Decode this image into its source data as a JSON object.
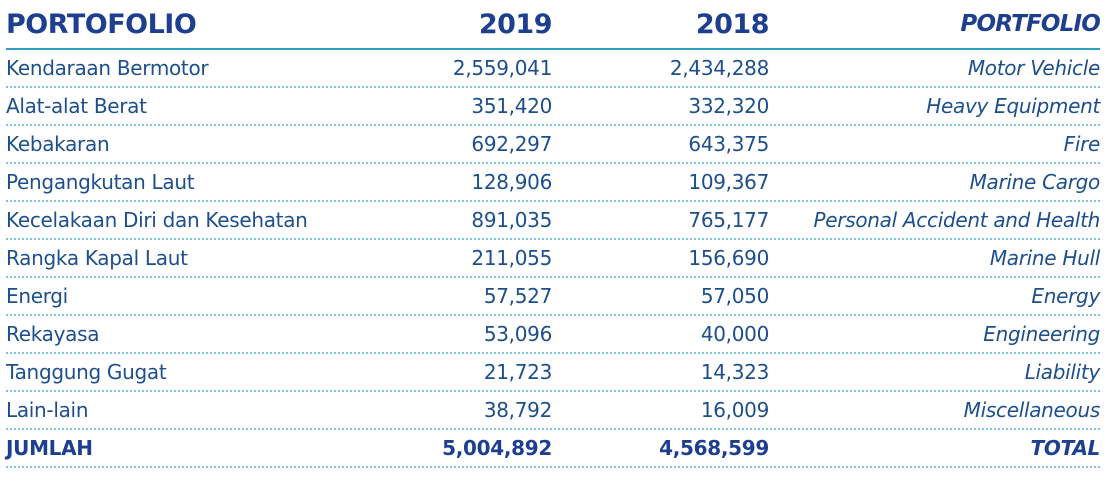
{
  "header": {
    "col_id": "PORTOFOLIO",
    "col_y1": "2019",
    "col_y2": "2018",
    "col_en": "PORTFOLIO"
  },
  "rows": [
    {
      "id": "Kendaraan Bermotor",
      "y2019": "2,559,041",
      "y2018": "2,434,288",
      "en": "Motor Vehicle"
    },
    {
      "id": "Alat-alat Berat",
      "y2019": "351,420",
      "y2018": "332,320",
      "en": "Heavy Equipment"
    },
    {
      "id": "Kebakaran",
      "y2019": "692,297",
      "y2018": "643,375",
      "en": "Fire"
    },
    {
      "id": "Pengangkutan Laut",
      "y2019": "128,906",
      "y2018": "109,367",
      "en": "Marine Cargo"
    },
    {
      "id": "Kecelakaan Diri dan Kesehatan",
      "y2019": "891,035",
      "y2018": "765,177",
      "en": "Personal Accident and Health"
    },
    {
      "id": "Rangka Kapal Laut",
      "y2019": "211,055",
      "y2018": "156,690",
      "en": "Marine Hull"
    },
    {
      "id": "Energi",
      "y2019": "57,527",
      "y2018": "57,050",
      "en": "Energy"
    },
    {
      "id": "Rekayasa",
      "y2019": "53,096",
      "y2018": "40,000",
      "en": "Engineering"
    },
    {
      "id": "Tanggung Gugat",
      "y2019": "21,723",
      "y2018": "14,323",
      "en": "Liability"
    },
    {
      "id": "Lain-lain",
      "y2019": "38,792",
      "y2018": "16,009",
      "en": "Miscellaneous"
    }
  ],
  "total": {
    "id": "JUMLAH",
    "y2019": "5,004,892",
    "y2018": "4,568,599",
    "en": "TOTAL"
  }
}
